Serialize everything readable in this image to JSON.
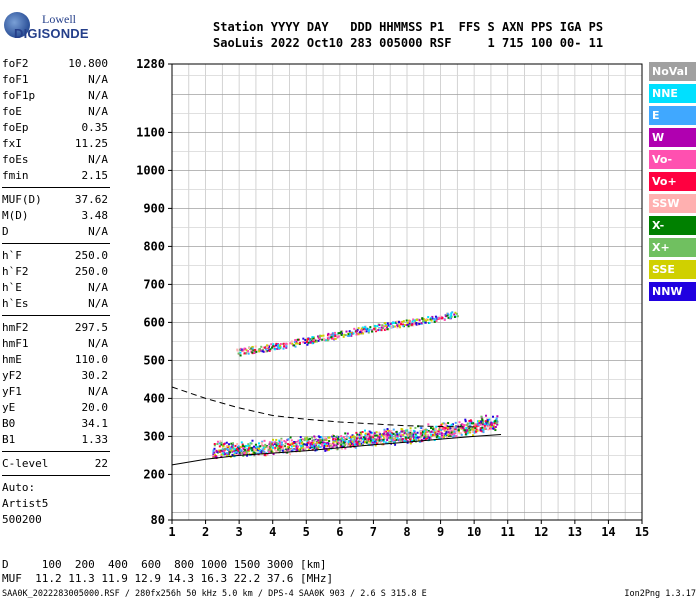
{
  "logo": {
    "line1": "Lowell",
    "line2": "DIGISONDE"
  },
  "header": {
    "row1": "Station YYYY DAY   DDD HHMMSS P1  FFS S AXN PPS IGA PS",
    "row2": "SaoLuis 2022 Oct10 283 005000 RSF     1 715 100 00- 11"
  },
  "params_block1": [
    {
      "label": "foF2",
      "value": "10.800"
    },
    {
      "label": "foF1",
      "value": "N/A"
    },
    {
      "label": "foF1p",
      "value": "N/A"
    },
    {
      "label": "foE",
      "value": "N/A"
    },
    {
      "label": "foEp",
      "value": "0.35"
    },
    {
      "label": "fxI",
      "value": "11.25"
    },
    {
      "label": "foEs",
      "value": "N/A"
    },
    {
      "label": "fmin",
      "value": "2.15"
    }
  ],
  "params_block2": [
    {
      "label": "MUF(D)",
      "value": "37.62"
    },
    {
      "label": "M(D)",
      "value": "3.48"
    },
    {
      "label": "D",
      "value": "N/A"
    }
  ],
  "params_block3": [
    {
      "label": "h`F",
      "value": "250.0"
    },
    {
      "label": "h`F2",
      "value": "250.0"
    },
    {
      "label": "h`E",
      "value": "N/A"
    },
    {
      "label": "h`Es",
      "value": "N/A"
    }
  ],
  "params_block4": [
    {
      "label": "hmF2",
      "value": "297.5"
    },
    {
      "label": "hmF1",
      "value": "N/A"
    },
    {
      "label": "hmE",
      "value": "110.0"
    },
    {
      "label": "yF2",
      "value": "30.2"
    },
    {
      "label": "yF1",
      "value": "N/A"
    },
    {
      "label": "yE",
      "value": "20.0"
    },
    {
      "label": "B0",
      "value": "34.1"
    },
    {
      "label": "B1",
      "value": "1.33"
    }
  ],
  "params_block5": [
    {
      "label": "C-level",
      "value": "22"
    }
  ],
  "auto_text": [
    "Auto:",
    "Artist5",
    "500200"
  ],
  "legend": [
    {
      "label": "NoVal",
      "color": "#a0a0a0"
    },
    {
      "label": "NNE",
      "color": "#00e0ff"
    },
    {
      "label": "E",
      "color": "#40a8ff"
    },
    {
      "label": "W",
      "color": "#b000b0"
    },
    {
      "label": "Vo-",
      "color": "#ff50b0"
    },
    {
      "label": "Vo+",
      "color": "#ff0040"
    },
    {
      "label": "SSW",
      "color": "#ffb0b0"
    },
    {
      "label": "X-",
      "color": "#008000"
    },
    {
      "label": "X+",
      "color": "#70c060"
    },
    {
      "label": "SSE",
      "color": "#d0d000"
    },
    {
      "label": "NNW",
      "color": "#2000e0"
    }
  ],
  "footer": {
    "row1": "D     100  200  400  600  800 1000 1500 3000 [km]",
    "row2": "MUF  11.2 11.3 11.9 12.9 14.3 16.3 22.2 37.6 [MHz]",
    "file": "SAA0K_2022283005000.RSF / 280fx256h 50 kHz 5.0 km / DPS-4 SAA0K 903 / 2.6 S 315.8 E",
    "version": "Ion2Png 1.3.17"
  },
  "chart_data": {
    "type": "scatter",
    "title": "",
    "xlabel": "",
    "ylabel": "",
    "xlim": [
      1,
      15
    ],
    "ylim": [
      80,
      1280
    ],
    "x_ticks": [
      "1",
      "2",
      "3",
      "4",
      "5",
      "6",
      "7",
      "8",
      "9",
      "10",
      "11",
      "12",
      "13",
      "14",
      "15"
    ],
    "y_ticks": [
      "80",
      "200",
      "300",
      "400",
      "500",
      "600",
      "700",
      "800",
      "900",
      "1000",
      "1100",
      "1280"
    ],
    "x_grid_step": 0.5,
    "y_grid_step": 50,
    "y_major_step": 100,
    "grid": true,
    "series": [
      {
        "kind": "trace",
        "points": [
          [
            2.2,
            258
          ],
          [
            3.0,
            262
          ],
          [
            4.0,
            268
          ],
          [
            5.0,
            275
          ],
          [
            6.0,
            282
          ],
          [
            7.0,
            292
          ],
          [
            8.0,
            298
          ],
          [
            9.0,
            310
          ],
          [
            10.0,
            322
          ],
          [
            10.7,
            335
          ]
        ]
      },
      {
        "kind": "trace",
        "points": [
          [
            2.9,
            520
          ],
          [
            4.0,
            535
          ],
          [
            5.0,
            550
          ],
          [
            6.0,
            568
          ],
          [
            7.0,
            585
          ],
          [
            8.0,
            598
          ],
          [
            9.0,
            612
          ],
          [
            9.5,
            622
          ]
        ]
      },
      {
        "kind": "profile",
        "points": [
          [
            1.0,
            225
          ],
          [
            2.0,
            240
          ],
          [
            3.0,
            250
          ],
          [
            4.0,
            256
          ],
          [
            5.0,
            262
          ],
          [
            6.0,
            270
          ],
          [
            7.0,
            278
          ],
          [
            8.0,
            285
          ],
          [
            9.0,
            293
          ],
          [
            10.0,
            300
          ],
          [
            10.8,
            305
          ]
        ]
      },
      {
        "kind": "profile_dashed",
        "points": [
          [
            1.0,
            430
          ],
          [
            2.0,
            400
          ],
          [
            3.0,
            375
          ],
          [
            4.0,
            355
          ],
          [
            5.0,
            345
          ],
          [
            6.0,
            338
          ],
          [
            7.0,
            333
          ],
          [
            8.0,
            328
          ],
          [
            9.0,
            326
          ],
          [
            10.0,
            325
          ]
        ]
      }
    ]
  }
}
